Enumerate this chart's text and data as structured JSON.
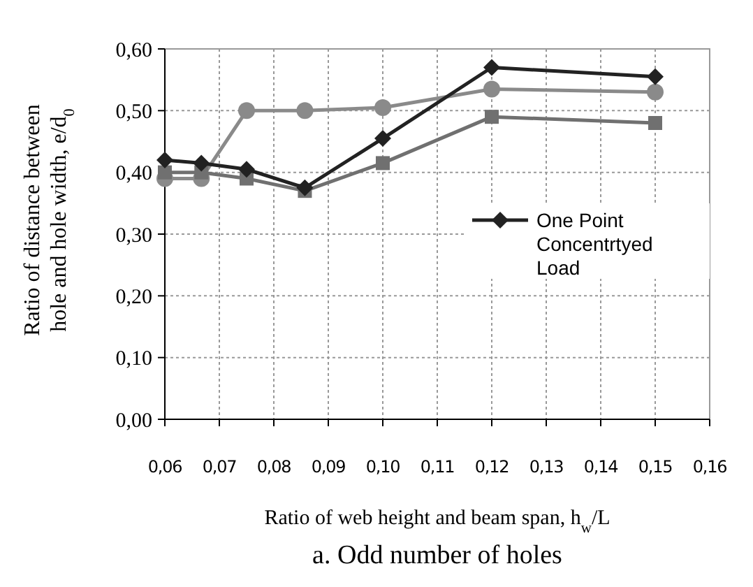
{
  "chart_data": {
    "type": "line",
    "title": "a. Odd number of holes",
    "xlabel": "Ratio of web height and beam span, h$_{w}$/L",
    "ylabel": "Ratio of distance between hole and hole width, e/d$_{0}$",
    "x": [
      0.06,
      0.0667,
      0.075,
      0.0857,
      0.1,
      0.12,
      0.15
    ],
    "xlim": [
      0.06,
      0.16
    ],
    "xticks": [
      {
        "value": 0.06,
        "label": "0,06"
      },
      {
        "value": 0.07,
        "label": "0,07"
      },
      {
        "value": 0.08,
        "label": "0,08"
      },
      {
        "value": 0.09,
        "label": "0,09"
      },
      {
        "value": 0.1,
        "label": "0,10"
      },
      {
        "value": 0.11,
        "label": "0,11"
      },
      {
        "value": 0.12,
        "label": "0,12"
      },
      {
        "value": 0.13,
        "label": "0,13"
      },
      {
        "value": 0.14,
        "label": "0,14"
      },
      {
        "value": 0.15,
        "label": "0,15"
      },
      {
        "value": 0.16,
        "label": "0,16"
      }
    ],
    "ylim": [
      0,
      0.6
    ],
    "yticks": [
      {
        "value": 0,
        "label": "0,00"
      },
      {
        "value": 0.1,
        "label": "0,10"
      },
      {
        "value": 0.2,
        "label": "0,20"
      },
      {
        "value": 0.3,
        "label": "0,30"
      },
      {
        "value": 0.4,
        "label": "0,40"
      },
      {
        "value": 0.5,
        "label": "0,50"
      },
      {
        "value": 0.6,
        "label": "0,60"
      }
    ],
    "grid": true,
    "legend": "right",
    "line_style": "solid",
    "series": [
      {
        "color": "#8a8a8a",
        "marker": "circle",
        "values": [
          0.39,
          0.39,
          0.5,
          0.5,
          0.505,
          0.535,
          0.53
        ]
      },
      {
        "color": "#707070",
        "marker": "square",
        "values": [
          0.4,
          0.4,
          0.39,
          0.37,
          0.415,
          0.49,
          0.48
        ]
      },
      {
        "name": "One Point Concentrtyed Load",
        "color": "#222222",
        "marker": "diamond",
        "values": [
          0.42,
          0.415,
          0.405,
          0.375,
          0.455,
          0.57,
          0.555
        ]
      }
    ]
  }
}
